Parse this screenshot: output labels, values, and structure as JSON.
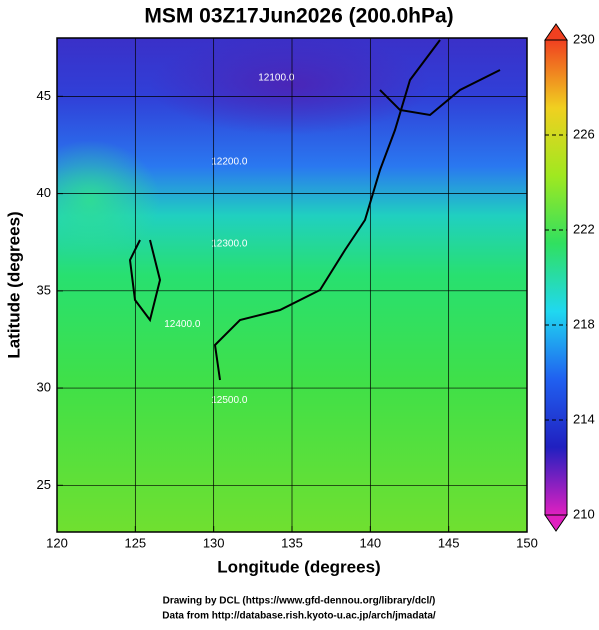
{
  "chart_data": {
    "type": "map",
    "title": "MSM 03Z17Jun2026 (200.0hPa)",
    "xlabel": "Longitude (degrees)",
    "ylabel": "Latitude  (degrees)",
    "xlim": [
      120,
      150
    ],
    "xticks": [
      120,
      125,
      130,
      135,
      140,
      145,
      150
    ],
    "ylim": [
      22.6,
      48
    ],
    "yticks": [
      25,
      30,
      35,
      40,
      45
    ],
    "grid": true,
    "contours": [
      {
        "value": 12100,
        "label": "12100.0"
      },
      {
        "value": 12200,
        "label": "12200.0"
      },
      {
        "value": 12300,
        "label": "12300.0"
      },
      {
        "value": 12400,
        "label": "12400.0"
      },
      {
        "value": 12500,
        "label": "12500.0"
      }
    ],
    "colorbar": {
      "lim": [
        210,
        230
      ],
      "ticks": [
        210,
        214,
        218,
        222,
        226,
        230
      ],
      "colors": [
        "#e020c0",
        "#2020c0",
        "#2060f0",
        "#20d8f0",
        "#30e060",
        "#a0e820",
        "#f0d020",
        "#f04020"
      ]
    },
    "footer": [
      "Drawing by DCL (https://www.gfd-dennou.org/library/dcl/)",
      "Data from http://database.rish.kyoto-u.ac.jp/arch/jmadata/"
    ]
  }
}
